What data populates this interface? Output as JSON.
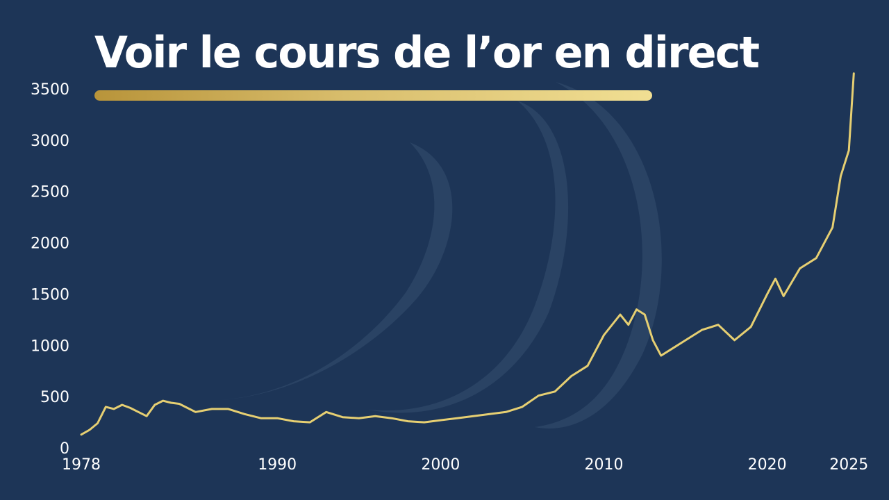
{
  "header": {
    "title": "Voir le cours de l’or en direct"
  },
  "colors": {
    "background": "#1d3557",
    "line": "#e6cf72",
    "accent_gold": "#d8bd6c",
    "text": "#ffffff"
  },
  "chart_data": {
    "type": "line",
    "title": "Voir le cours de l’or en direct",
    "xlabel": "",
    "ylabel": "",
    "xlim": [
      1978,
      2025.5
    ],
    "ylim": [
      0,
      3500
    ],
    "x_ticks": [
      1978,
      1990,
      2000,
      2010,
      2020,
      2025
    ],
    "y_ticks": [
      0,
      500,
      1000,
      1500,
      2000,
      2500,
      3000,
      3500
    ],
    "grid": false,
    "legend": "none",
    "series": [
      {
        "x": [
          1978,
          1978.5,
          1979,
          1979.5,
          1980,
          1980.5,
          1981,
          1981.5,
          1982,
          1982.5,
          1983,
          1983.5,
          1984,
          1985,
          1986,
          1987,
          1988,
          1989,
          1990,
          1991,
          1992,
          1993,
          1994,
          1995,
          1996,
          1997,
          1998,
          1999,
          2000,
          2001,
          2002,
          2003,
          2004,
          2005,
          2006,
          2007,
          2008,
          2009,
          2010,
          2011,
          2011.5,
          2012,
          2012.5,
          2013,
          2013.5,
          2014,
          2015,
          2016,
          2017,
          2018,
          2019,
          2020,
          2020.5,
          2021,
          2022,
          2023,
          2024,
          2024.5,
          2025,
          2025.3
        ],
        "values": [
          130,
          175,
          240,
          400,
          380,
          420,
          390,
          350,
          310,
          420,
          460,
          440,
          430,
          350,
          380,
          380,
          330,
          290,
          290,
          260,
          250,
          350,
          300,
          290,
          310,
          290,
          260,
          250,
          270,
          290,
          310,
          330,
          350,
          400,
          510,
          550,
          700,
          800,
          1100,
          1300,
          1200,
          1350,
          1300,
          1050,
          900,
          950,
          1050,
          1150,
          1200,
          1050,
          1180,
          1500,
          1650,
          1480,
          1750,
          1850,
          2150,
          2650,
          2900,
          3650
        ]
      }
    ]
  }
}
